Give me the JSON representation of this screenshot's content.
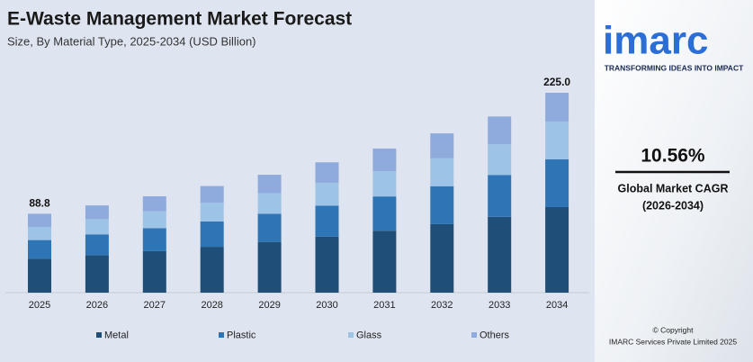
{
  "chart_data": {
    "type": "stacked-bar",
    "title": "E-Waste Management Market Forecast",
    "subtitle": "Size, By Material Type, 2025-2034 (USD Billion)",
    "categories": [
      "2025",
      "2026",
      "2027",
      "2028",
      "2029",
      "2030",
      "2031",
      "2032",
      "2033",
      "2034"
    ],
    "series": [
      {
        "name": "Metal",
        "color": "#1f4e79",
        "values": [
          38.1,
          42.2,
          46.7,
          51.6,
          57.1,
          63.1,
          69.7,
          77.1,
          85.3,
          96.3
        ]
      },
      {
        "name": "Plastic",
        "color": "#2e75b6",
        "values": [
          21.1,
          23.4,
          25.8,
          28.6,
          31.6,
          34.9,
          38.6,
          42.7,
          47.2,
          53.7
        ]
      },
      {
        "name": "Glass",
        "color": "#9dc3e6",
        "values": [
          14.8,
          17.2,
          19.0,
          21.0,
          23.2,
          25.7,
          28.4,
          31.4,
          34.7,
          42.6
        ]
      },
      {
        "name": "Others",
        "color": "#8faadc",
        "values": [
          14.8,
          15.4,
          17.0,
          18.8,
          20.8,
          23.0,
          25.5,
          28.1,
          31.1,
          32.4
        ]
      }
    ],
    "totals": [
      88.8,
      null,
      null,
      null,
      null,
      null,
      null,
      null,
      null,
      225.0
    ],
    "total_labels": [
      "88.8",
      null,
      null,
      null,
      null,
      null,
      null,
      null,
      null,
      "225.0"
    ],
    "legend": "bottom"
  },
  "branding": {
    "logo": "imarc",
    "tagline": "TRANSFORMING IDEAS INTO IMPACT",
    "cagr": "10.56%",
    "cagr_label": "Global Market CAGR",
    "cagr_period": "(2026-2034)",
    "copyright": "© Copyright",
    "company": "IMARC Services Private Limited 2025"
  }
}
